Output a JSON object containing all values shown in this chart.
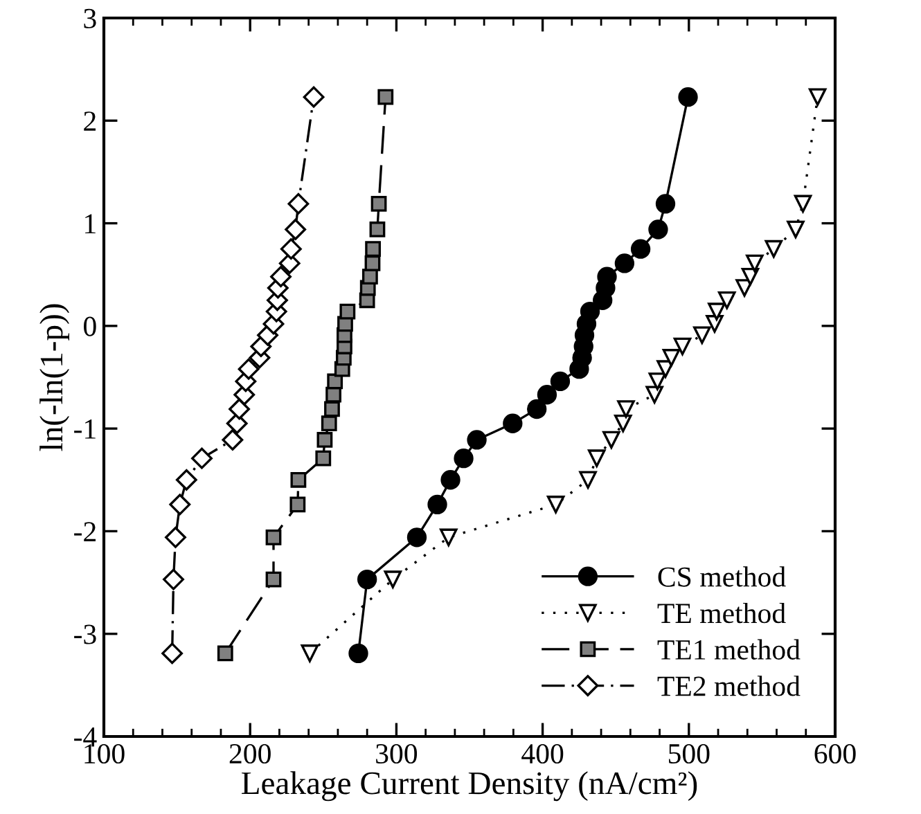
{
  "chart_data": {
    "type": "line",
    "xlabel": "Leakage Current Density (nA/cm²)",
    "ylabel": "ln(-ln(1-p))",
    "xlim": [
      100,
      600
    ],
    "ylim": [
      -4,
      3
    ],
    "xticks": [
      100,
      {
        "value": 120,
        "label": null
      },
      {
        "value": 140,
        "label": null
      },
      {
        "value": 160,
        "label": null
      },
      {
        "value": 180,
        "label": null
      },
      200,
      {
        "value": 220,
        "label": null
      },
      {
        "value": 240,
        "label": null
      },
      {
        "value": 260,
        "label": null
      },
      {
        "value": 280,
        "label": null
      },
      300,
      {
        "value": 320,
        "label": null
      },
      {
        "value": 340,
        "label": null
      },
      {
        "value": 360,
        "label": null
      },
      {
        "value": 380,
        "label": null
      },
      400,
      {
        "value": 420,
        "label": null
      },
      {
        "value": 440,
        "label": null
      },
      {
        "value": 460,
        "label": null
      },
      {
        "value": 480,
        "label": null
      },
      500,
      {
        "value": 520,
        "label": null
      },
      {
        "value": 540,
        "label": null
      },
      {
        "value": 560,
        "label": null
      },
      {
        "value": 580,
        "label": null
      },
      600
    ],
    "yticks": [
      -4,
      -3,
      -2,
      -1,
      0,
      1,
      2,
      3
    ],
    "grid": false,
    "legend": "bottom right",
    "series": [
      {
        "name": "CS method",
        "color": "#000000",
        "marker": "circle",
        "line_style": "solid",
        "x": [
          274,
          280,
          314,
          328,
          337,
          346,
          355,
          379.5,
          396,
          403,
          412,
          425,
          427,
          428,
          428.6,
          430,
          432.4,
          441,
          443,
          444,
          456,
          467,
          479,
          484,
          499.4
        ],
        "values": [
          -3.19,
          -2.47,
          -2.06,
          -1.74,
          -1.5,
          -1.29,
          -1.11,
          -0.95,
          -0.81,
          -0.67,
          -0.54,
          -0.42,
          -0.31,
          -0.2,
          -0.09,
          0.02,
          0.14,
          0.25,
          0.37,
          0.48,
          0.61,
          0.75,
          0.94,
          1.19,
          2.23
        ]
      },
      {
        "name": "TE method",
        "color": "#ffffff",
        "marker": "triangle",
        "line_style": "dotted",
        "x": [
          240.8,
          297.6,
          335.7,
          409,
          431,
          437,
          447,
          455,
          457,
          476.5,
          478.5,
          484,
          488,
          495.6,
          509,
          517.6,
          519,
          526,
          538,
          542,
          545,
          558,
          573,
          578,
          588
        ],
        "values": [
          -3.19,
          -2.47,
          -2.06,
          -1.74,
          -1.5,
          -1.29,
          -1.11,
          -0.95,
          -0.81,
          -0.67,
          -0.54,
          -0.42,
          -0.31,
          -0.2,
          -0.09,
          0.02,
          0.14,
          0.25,
          0.37,
          0.48,
          0.61,
          0.75,
          0.94,
          1.19,
          2.23
        ]
      },
      {
        "name": "TE1 method",
        "color": "#808080",
        "marker": "square",
        "line_style": "dashed",
        "x": [
          183,
          216,
          216,
          232.5,
          233,
          250,
          251,
          254,
          256,
          257,
          258,
          263,
          264,
          264.5,
          264.5,
          265,
          266.6,
          280,
          280.5,
          282,
          283.7,
          284,
          287,
          288,
          292.6
        ],
        "values": [
          -3.19,
          -2.47,
          -2.06,
          -1.74,
          -1.5,
          -1.29,
          -1.11,
          -0.95,
          -0.81,
          -0.67,
          -0.54,
          -0.42,
          -0.31,
          -0.2,
          -0.09,
          0.02,
          0.14,
          0.25,
          0.37,
          0.48,
          0.61,
          0.75,
          0.94,
          1.19,
          2.23
        ]
      },
      {
        "name": "TE2 method",
        "color": "#ffffff",
        "marker": "diamond",
        "line_style": "dashdot",
        "x": [
          146.7,
          147.6,
          149,
          152,
          156.5,
          167,
          188,
          191,
          192.6,
          196,
          197,
          199,
          206.5,
          207.4,
          212,
          216,
          218,
          218.6,
          219,
          221,
          227,
          228,
          231,
          233,
          243.5
        ],
        "values": [
          -3.19,
          -2.47,
          -2.06,
          -1.74,
          -1.5,
          -1.29,
          -1.11,
          -0.95,
          -0.81,
          -0.67,
          -0.54,
          -0.42,
          -0.31,
          -0.2,
          -0.09,
          0.02,
          0.14,
          0.25,
          0.37,
          0.48,
          0.61,
          0.75,
          0.94,
          1.19,
          2.23
        ]
      }
    ]
  }
}
